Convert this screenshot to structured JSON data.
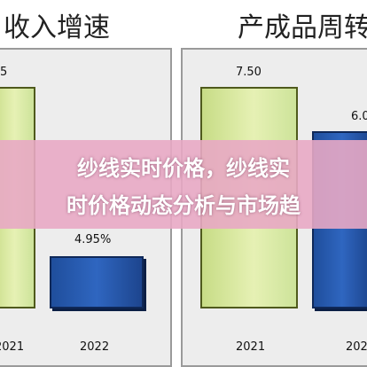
{
  "titles": {
    "left": "收入增速",
    "right": "产成品周转"
  },
  "banner": {
    "line1": "纱线实时价格，纱线实",
    "line2": "时价格动态分析与市场趋"
  },
  "chart_data": [
    {
      "type": "bar",
      "title": "收入增速",
      "categories": [
        "2021",
        "2022"
      ],
      "values": [
        null,
        4.95
      ],
      "data_labels": [
        "5",
        "4.95%"
      ]
    },
    {
      "type": "bar",
      "title": "产成品周转",
      "categories": [
        "2021",
        "2022"
      ],
      "values": [
        7.5,
        6.0
      ],
      "data_labels": [
        "7.50",
        "6.0"
      ]
    }
  ],
  "colors": {
    "bar_2021": "#dbeaa0",
    "bar_2022": "#2a5db0",
    "banner": "#e8a8c4",
    "panel": "#ededed"
  }
}
